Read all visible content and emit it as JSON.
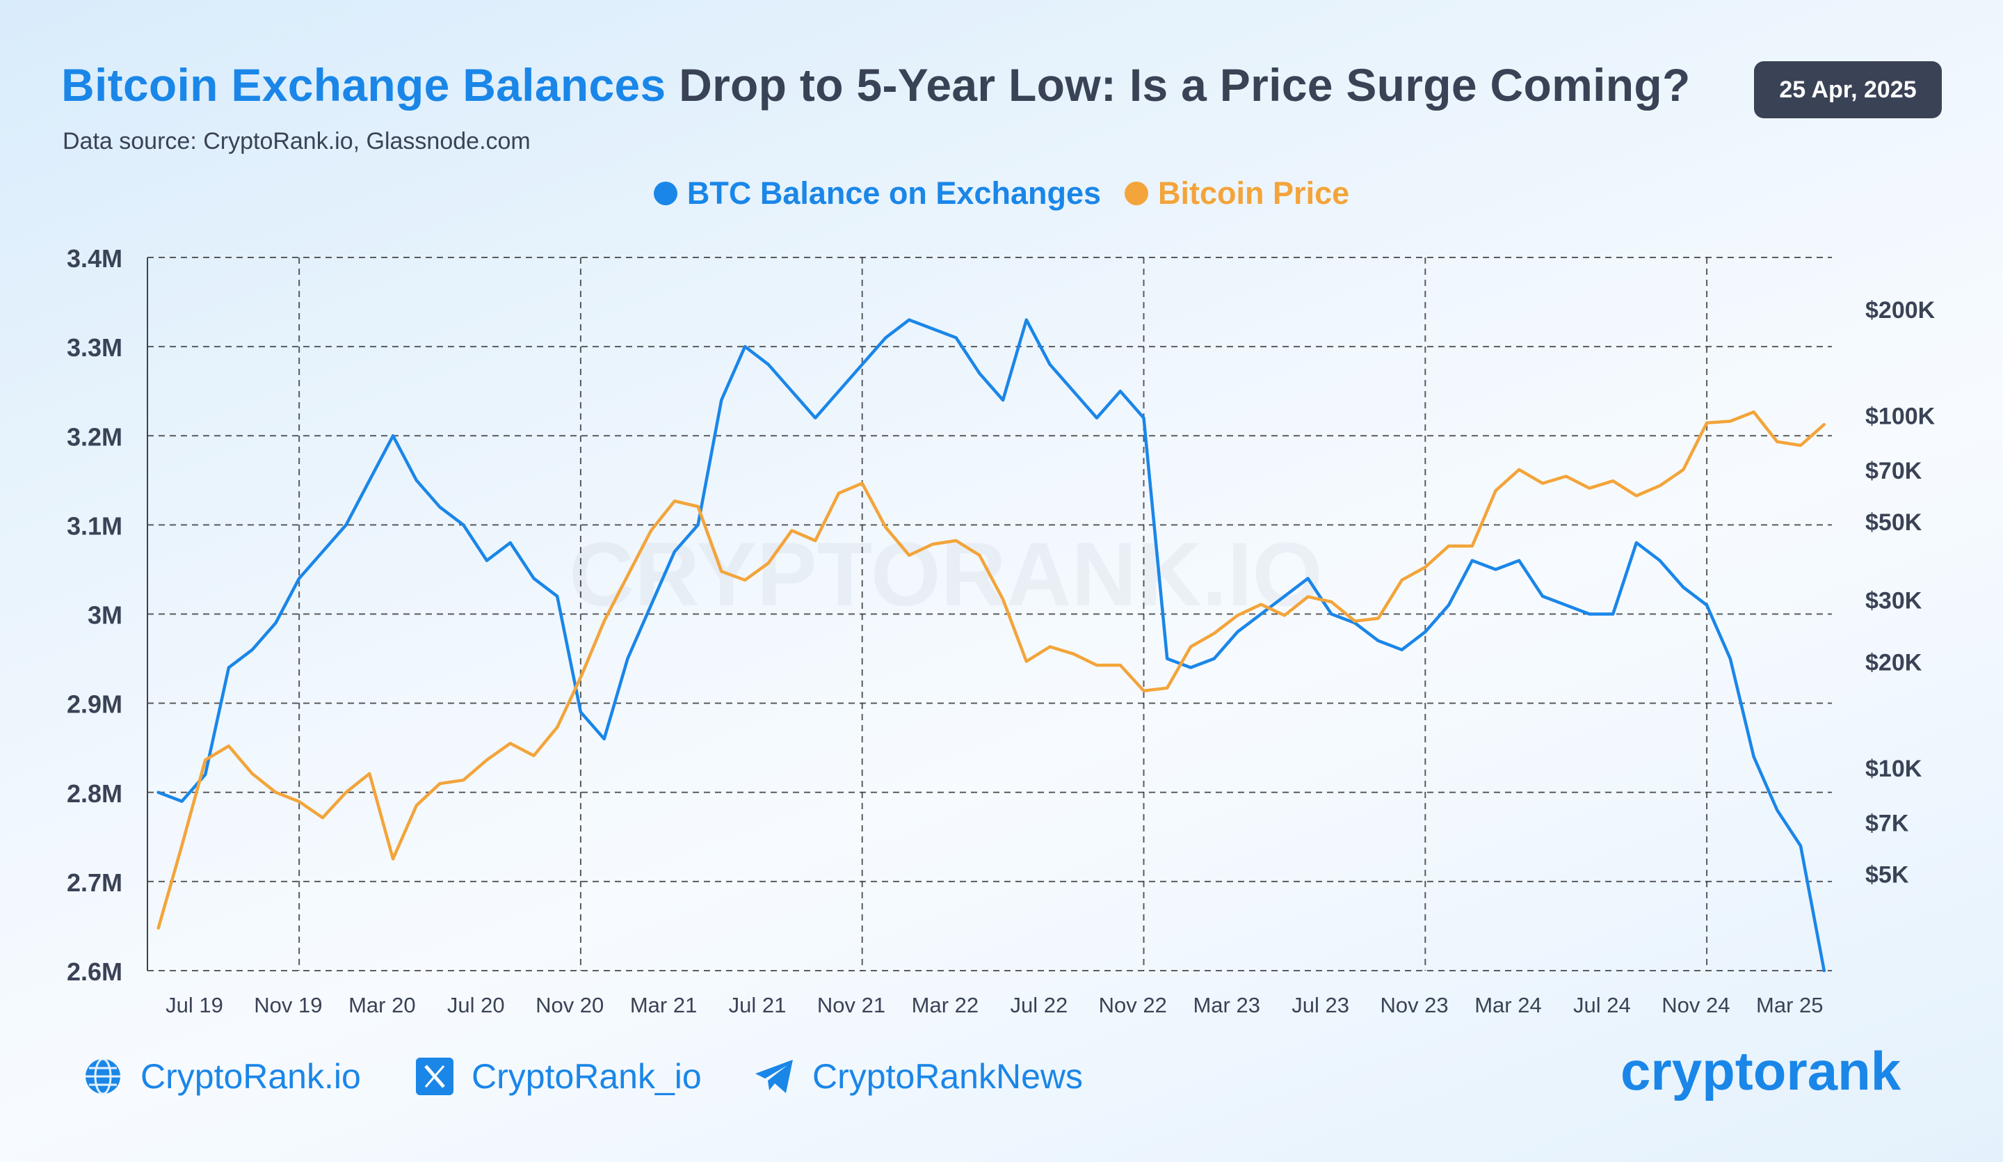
{
  "header": {
    "title_highlight": "Bitcoin Exchange Balances",
    "title_rest": "Drop to 5-Year Low: Is a Price Surge Coming?",
    "source": "Data source: CryptoRank.io, Glassnode.com",
    "date": "25 Apr, 2025"
  },
  "watermark": "CRYPTORANK.IO",
  "colors": {
    "balance": "#1a86e8",
    "price": "#f3a43a",
    "text_dark": "#3a4256",
    "grid": "#333333"
  },
  "footer": {
    "website": "CryptoRank.io",
    "twitter": "CryptoRank_io",
    "telegram": "CryptoRankNews",
    "brand": "cryptorank"
  },
  "chart_data": {
    "type": "line",
    "title": "",
    "xlabel": "",
    "ylabel": "",
    "legend_position": "top-center",
    "grid": true,
    "x_ticks": [
      "Jul 19",
      "Nov 19",
      "Mar 20",
      "Jul 20",
      "Nov 20",
      "Mar 21",
      "Jul 21",
      "Nov 21",
      "Mar 22",
      "Jul 22",
      "Nov 22",
      "Mar 23",
      "Jul 23",
      "Nov 23",
      "Mar 24",
      "Jul 24",
      "Nov 24",
      "Mar 25"
    ],
    "x_range": [
      "2019-05-01",
      "2025-04-25"
    ],
    "y_left": {
      "range": [
        2600000,
        3400000
      ],
      "ticks": [
        2600000,
        2700000,
        2800000,
        2900000,
        3000000,
        3100000,
        3200000,
        3300000,
        3400000
      ],
      "tick_labels": [
        "2.6M",
        "2.7M",
        "2.8M",
        "2.9M",
        "3M",
        "3.1M",
        "3.2M",
        "3.3M",
        "3.4M"
      ]
    },
    "y_right": {
      "scale": "log",
      "range": [
        2650,
        280000
      ],
      "ticks": [
        5000,
        7000,
        10000,
        20000,
        30000,
        50000,
        70000,
        100000,
        200000
      ],
      "tick_labels": [
        "$5K",
        "$7K",
        "$10K",
        "$20K",
        "$30K",
        "$50K",
        "$70K",
        "$100K",
        "$200K"
      ]
    },
    "series": [
      {
        "name": "BTC Balance on Exchanges",
        "axis": "left",
        "x": [
          "2019-05",
          "2019-06",
          "2019-07",
          "2019-08",
          "2019-09",
          "2019-10",
          "2019-11",
          "2019-12",
          "2020-01",
          "2020-02",
          "2020-03",
          "2020-04",
          "2020-05",
          "2020-06",
          "2020-07",
          "2020-08",
          "2020-09",
          "2020-10",
          "2020-11",
          "2020-12",
          "2021-01",
          "2021-02",
          "2021-03",
          "2021-04",
          "2021-05",
          "2021-06",
          "2021-07",
          "2021-08",
          "2021-09",
          "2021-10",
          "2021-11",
          "2021-12",
          "2022-01",
          "2022-02",
          "2022-03",
          "2022-04",
          "2022-05",
          "2022-06",
          "2022-07",
          "2022-08",
          "2022-09",
          "2022-10",
          "2022-11",
          "2022-12",
          "2023-01",
          "2023-02",
          "2023-03",
          "2023-04",
          "2023-05",
          "2023-06",
          "2023-07",
          "2023-08",
          "2023-09",
          "2023-10",
          "2023-11",
          "2023-12",
          "2024-01",
          "2024-02",
          "2024-03",
          "2024-04",
          "2024-05",
          "2024-06",
          "2024-07",
          "2024-08",
          "2024-09",
          "2024-10",
          "2024-11",
          "2024-12",
          "2025-01",
          "2025-02",
          "2025-03",
          "2025-04"
        ],
        "values": [
          2800000,
          2790000,
          2820000,
          2940000,
          2960000,
          2990000,
          3040000,
          3070000,
          3100000,
          3150000,
          3200000,
          3150000,
          3120000,
          3100000,
          3060000,
          3080000,
          3040000,
          3020000,
          2890000,
          2860000,
          2950000,
          3010000,
          3070000,
          3100000,
          3240000,
          3300000,
          3280000,
          3250000,
          3220000,
          3250000,
          3280000,
          3310000,
          3330000,
          3320000,
          3310000,
          3270000,
          3240000,
          3330000,
          3280000,
          3250000,
          3220000,
          3250000,
          3220000,
          2950000,
          2940000,
          2950000,
          2980000,
          3000000,
          3020000,
          3040000,
          3000000,
          2990000,
          2970000,
          2960000,
          2980000,
          3010000,
          3060000,
          3050000,
          3060000,
          3020000,
          3010000,
          3000000,
          3000000,
          3080000,
          3060000,
          3030000,
          3010000,
          2950000,
          2840000,
          2780000,
          2740000,
          2600000
        ]
      },
      {
        "name": "Bitcoin Price",
        "axis": "right",
        "x": [
          "2019-05",
          "2019-06",
          "2019-07",
          "2019-08",
          "2019-09",
          "2019-10",
          "2019-11",
          "2019-12",
          "2020-01",
          "2020-02",
          "2020-03",
          "2020-04",
          "2020-05",
          "2020-06",
          "2020-07",
          "2020-08",
          "2020-09",
          "2020-10",
          "2020-11",
          "2020-12",
          "2021-01",
          "2021-02",
          "2021-03",
          "2021-04",
          "2021-05",
          "2021-06",
          "2021-07",
          "2021-08",
          "2021-09",
          "2021-10",
          "2021-11",
          "2021-12",
          "2022-01",
          "2022-02",
          "2022-03",
          "2022-04",
          "2022-05",
          "2022-06",
          "2022-07",
          "2022-08",
          "2022-09",
          "2022-10",
          "2022-11",
          "2022-12",
          "2023-01",
          "2023-02",
          "2023-03",
          "2023-04",
          "2023-05",
          "2023-06",
          "2023-07",
          "2023-08",
          "2023-09",
          "2023-10",
          "2023-11",
          "2023-12",
          "2024-01",
          "2024-02",
          "2024-03",
          "2024-04",
          "2024-05",
          "2024-06",
          "2024-07",
          "2024-08",
          "2024-09",
          "2024-10",
          "2024-11",
          "2024-12",
          "2025-01",
          "2025-02",
          "2025-03",
          "2025-04"
        ],
        "values": [
          3500,
          6000,
          10500,
          11500,
          9600,
          8500,
          8000,
          7200,
          8500,
          9600,
          5500,
          7800,
          9000,
          9200,
          10500,
          11700,
          10800,
          13000,
          18000,
          26000,
          35000,
          47000,
          57000,
          55000,
          36000,
          34000,
          38000,
          47000,
          44000,
          60000,
          64000,
          48000,
          40000,
          43000,
          44000,
          40000,
          30000,
          20000,
          22000,
          21000,
          19500,
          19500,
          16500,
          16800,
          22000,
          24000,
          27000,
          29000,
          27000,
          30500,
          29500,
          26000,
          26500,
          34000,
          37000,
          42500,
          42500,
          61000,
          70000,
          64000,
          67000,
          62000,
          65000,
          59000,
          63000,
          70000,
          95000,
          96000,
          102000,
          84000,
          82000,
          94000
        ]
      }
    ]
  }
}
